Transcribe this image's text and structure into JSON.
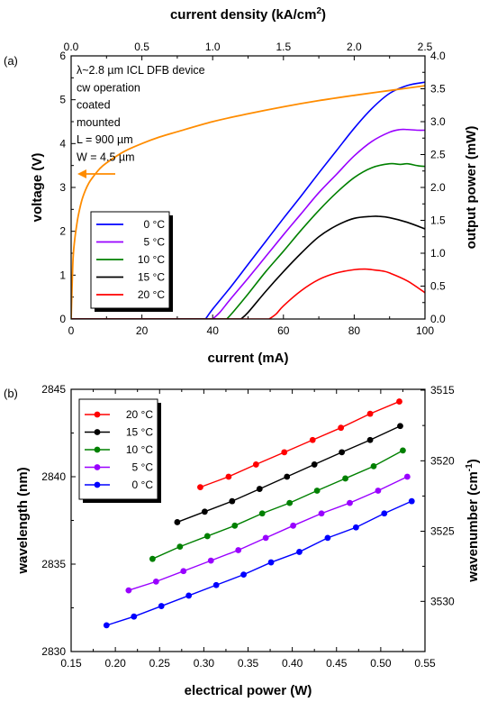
{
  "chart_data": [
    {
      "type": "line",
      "panel_label": "(a)",
      "xlabel": "current (mA)",
      "x2label": "current density (kA/cm",
      "x2label_sup": "2",
      "x2label_end": ")",
      "ylabel": "voltage (V)",
      "y2label": "output power (mW)",
      "xlim": [
        0,
        100
      ],
      "x2lim": [
        0,
        2.5
      ],
      "ylim": [
        0,
        6
      ],
      "y2lim": [
        0,
        4
      ],
      "xticks": [
        "0",
        "20",
        "40",
        "60",
        "80",
        "100"
      ],
      "x2ticks": [
        "0.0",
        "0.5",
        "1.0",
        "1.5",
        "2.0",
        "2.5"
      ],
      "yticks": [
        "0",
        "1",
        "2",
        "3",
        "4",
        "5",
        "6"
      ],
      "y2ticks": [
        "0.0",
        "0.5",
        "1.0",
        "1.5",
        "2.0",
        "2.5",
        "3.0",
        "3.5",
        "4.0"
      ],
      "annotation_lines": [
        "λ~2.8 µm ICL DFB device",
        "cw operation",
        "coated",
        "mounted",
        "L = 900 µm",
        "W = 4.5 µm"
      ],
      "grid": false,
      "legend_position": "left-center",
      "voltage_series": {
        "color": "#ff8c00",
        "x": [
          0,
          0.5,
          1,
          1.5,
          2,
          3,
          4,
          5,
          6,
          8,
          10,
          15,
          20,
          25,
          30,
          40,
          50,
          60,
          70,
          80,
          90,
          100
        ],
        "y": [
          0,
          1.3,
          1.8,
          2.1,
          2.35,
          2.7,
          2.93,
          3.1,
          3.22,
          3.42,
          3.56,
          3.82,
          4.0,
          4.15,
          4.27,
          4.5,
          4.68,
          4.84,
          4.98,
          5.1,
          5.21,
          5.32
        ]
      },
      "series": [
        {
          "name": "0 °C",
          "color": "#0000ff",
          "x": [
            38,
            40,
            45,
            50,
            55,
            60,
            65,
            70,
            75,
            80,
            85,
            90,
            95,
            100
          ],
          "y": [
            0,
            0.15,
            0.48,
            0.83,
            1.18,
            1.53,
            1.87,
            2.22,
            2.56,
            2.9,
            3.2,
            3.43,
            3.55,
            3.6
          ]
        },
        {
          "name": "5 °C",
          "color": "#9900ff",
          "x": [
            40,
            42,
            45,
            50,
            55,
            60,
            65,
            70,
            75,
            80,
            85,
            90,
            93,
            95,
            98,
            100
          ],
          "y": [
            0,
            0.1,
            0.3,
            0.62,
            0.95,
            1.28,
            1.6,
            1.92,
            2.2,
            2.48,
            2.7,
            2.84,
            2.88,
            2.88,
            2.87,
            2.87
          ]
        },
        {
          "name": "10 °C",
          "color": "#008000",
          "x": [
            44,
            46,
            50,
            55,
            60,
            65,
            70,
            75,
            80,
            85,
            90,
            93,
            95,
            98,
            100
          ],
          "y": [
            0,
            0.12,
            0.38,
            0.72,
            1.03,
            1.35,
            1.65,
            1.92,
            2.15,
            2.3,
            2.36,
            2.35,
            2.36,
            2.33,
            2.32
          ]
        },
        {
          "name": "15 °C",
          "color": "#000000",
          "x": [
            48,
            50,
            55,
            60,
            65,
            70,
            75,
            80,
            85,
            87,
            90,
            95,
            100
          ],
          "y": [
            0,
            0.1,
            0.42,
            0.72,
            1.0,
            1.25,
            1.42,
            1.53,
            1.56,
            1.56,
            1.54,
            1.47,
            1.37
          ]
        },
        {
          "name": "20 °C",
          "color": "#ff0000",
          "x": [
            56,
            58,
            60,
            65,
            70,
            75,
            80,
            83,
            85,
            88,
            90,
            95,
            100
          ],
          "y": [
            0,
            0.08,
            0.2,
            0.43,
            0.6,
            0.7,
            0.75,
            0.76,
            0.75,
            0.73,
            0.7,
            0.58,
            0.4
          ]
        }
      ]
    },
    {
      "type": "line",
      "panel_label": "(b)",
      "xlabel": "electrical power (W)",
      "ylabel": "wavelength (nm)",
      "y2label": "wavenumber (cm",
      "y2label_sup": "-1",
      "y2label_end": ")",
      "xlim": [
        0.15,
        0.55
      ],
      "ylim": [
        2830,
        2845
      ],
      "xticks": [
        "0.15",
        "0.20",
        "0.25",
        "0.30",
        "0.35",
        "0.40",
        "0.45",
        "0.50",
        "0.55"
      ],
      "yticks": [
        "2830",
        "2835",
        "2840",
        "2845"
      ],
      "y2ticks": [
        "3515",
        "3520",
        "3525",
        "3530"
      ],
      "y2tick_wavelengths": [
        2844.95,
        2840.91,
        2836.88,
        2832.87
      ],
      "grid": false,
      "legend_position": "top-left",
      "series": [
        {
          "name": "20 °C",
          "color": "#ff0000",
          "x": [
            0.296,
            0.328,
            0.359,
            0.391,
            0.423,
            0.455,
            0.488,
            0.521
          ],
          "y": [
            2839.4,
            2840.0,
            2840.7,
            2841.4,
            2842.1,
            2842.8,
            2843.6,
            2844.3
          ]
        },
        {
          "name": "15 °C",
          "color": "#000000",
          "x": [
            0.27,
            0.301,
            0.332,
            0.363,
            0.394,
            0.425,
            0.456,
            0.488,
            0.522
          ],
          "y": [
            2837.4,
            2838.0,
            2838.6,
            2839.3,
            2840.0,
            2840.7,
            2841.4,
            2842.1,
            2842.9
          ]
        },
        {
          "name": "10 °C",
          "color": "#008000",
          "x": [
            0.242,
            0.273,
            0.304,
            0.335,
            0.366,
            0.397,
            0.428,
            0.46,
            0.492,
            0.525
          ],
          "y": [
            2835.3,
            2836.0,
            2836.6,
            2837.2,
            2837.9,
            2838.5,
            2839.2,
            2839.9,
            2840.6,
            2841.5
          ]
        },
        {
          "name": "5 °C",
          "color": "#9900ff",
          "x": [
            0.215,
            0.246,
            0.277,
            0.308,
            0.339,
            0.37,
            0.401,
            0.433,
            0.465,
            0.497,
            0.53
          ],
          "y": [
            2833.5,
            2834.0,
            2834.6,
            2835.2,
            2835.8,
            2836.5,
            2837.2,
            2837.9,
            2838.5,
            2839.2,
            2840.0
          ]
        },
        {
          "name": "0 °C",
          "color": "#0000ff",
          "x": [
            0.19,
            0.221,
            0.252,
            0.283,
            0.314,
            0.345,
            0.376,
            0.408,
            0.44,
            0.472,
            0.504,
            0.535
          ],
          "y": [
            2831.5,
            2832.0,
            2832.6,
            2833.2,
            2833.8,
            2834.4,
            2835.1,
            2835.7,
            2836.5,
            2837.1,
            2837.9,
            2838.6
          ]
        }
      ]
    }
  ]
}
